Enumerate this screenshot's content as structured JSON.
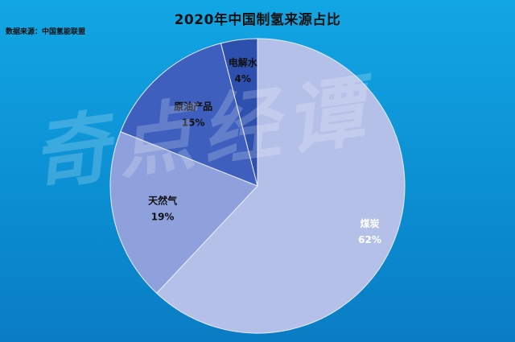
{
  "header": {
    "title": "2020年中国制氢来源占比",
    "source": "数据来源：中国氢能联盟"
  },
  "watermark": "奇点经谭",
  "chart_data": {
    "type": "pie",
    "title": "2020年中国制氢来源占比",
    "start_angle_deg": 0,
    "direction": "clockwise",
    "slices": [
      {
        "name": "煤炭",
        "value": 62,
        "label": "62%",
        "color": "#b4c0e8",
        "label_color": "#ffffff"
      },
      {
        "name": "天然气",
        "value": 19,
        "label": "19%",
        "color": "#8fa1dc",
        "label_color": "#111111"
      },
      {
        "name": "原油产品",
        "value": 15,
        "label": "15%",
        "color": "#3e5fbd",
        "label_color": "#111111"
      },
      {
        "name": "电解水",
        "value": 4,
        "label": "4%",
        "color": "#2d4fae",
        "label_color": "#111111"
      }
    ]
  }
}
